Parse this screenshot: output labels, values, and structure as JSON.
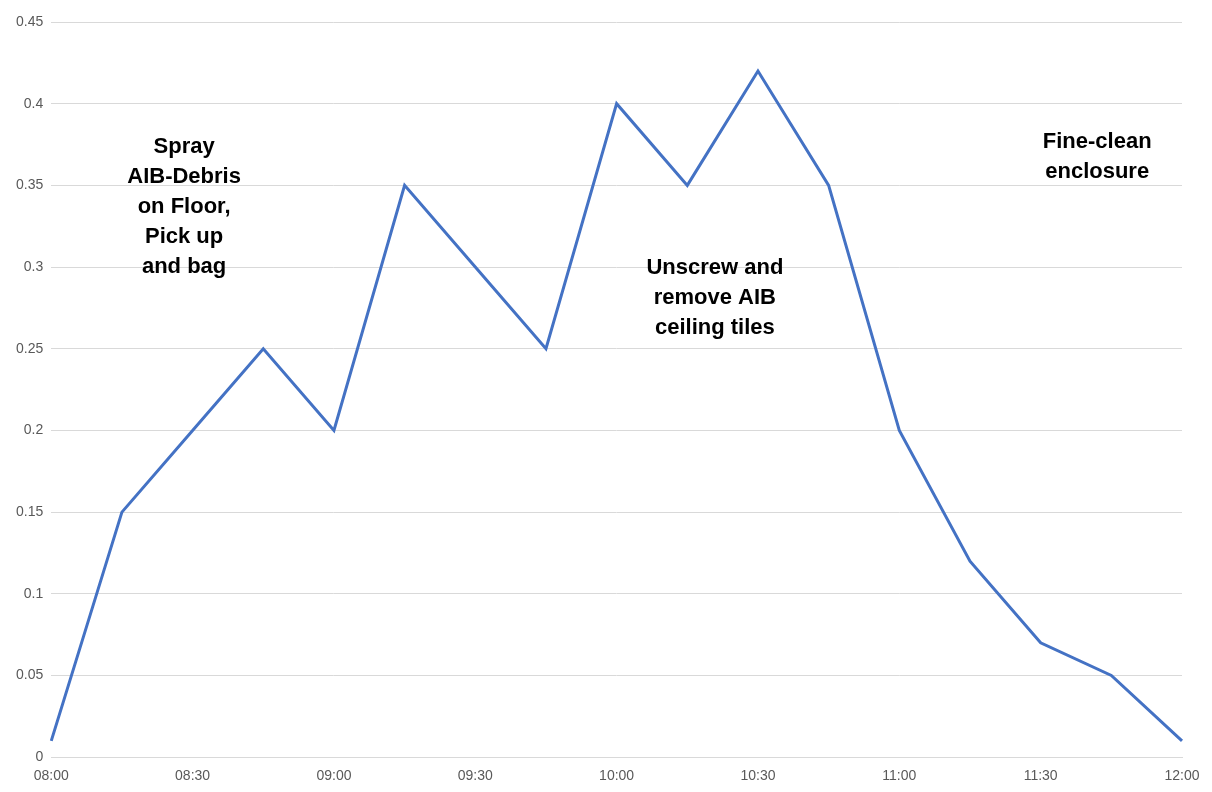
{
  "chart_data": {
    "type": "line",
    "categories": [
      "08:00",
      null,
      "08:30",
      null,
      "09:00",
      null,
      "09:30",
      null,
      "10:00",
      null,
      "10:30",
      null,
      "11:00",
      null,
      "11:30",
      null,
      "12:00"
    ],
    "values": [
      0.01,
      0.15,
      0.2,
      0.25,
      0.2,
      0.35,
      0.3,
      0.25,
      0.4,
      0.35,
      0.42,
      0.35,
      0.2,
      0.12,
      0.07,
      0.05,
      0.01
    ],
    "color": "#4472c4",
    "marker": "none",
    "line_style": "solid",
    "ylim": [
      0,
      0.45
    ],
    "yticks": [
      0,
      0.05,
      0.1,
      0.15,
      0.2,
      0.25,
      0.3,
      0.35,
      0.4,
      0.45
    ],
    "grid": true,
    "annotations": [
      [
        "Spray",
        "AIB-Debris",
        "on Floor,",
        "Pick up",
        "and bag"
      ],
      [
        "Unscrew and",
        "remove AIB",
        "ceiling tiles"
      ],
      [
        "Fine-clean",
        "enclosure"
      ]
    ]
  }
}
